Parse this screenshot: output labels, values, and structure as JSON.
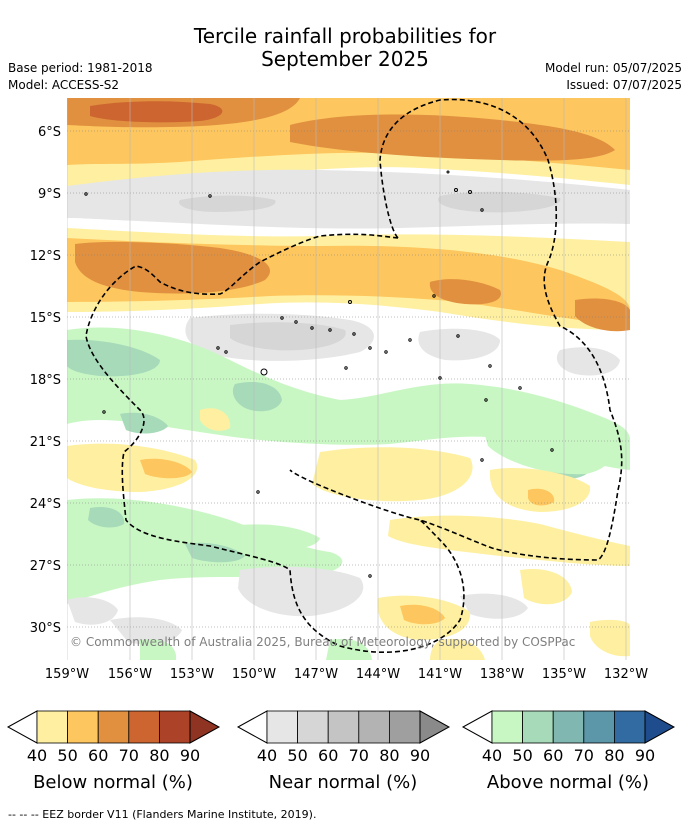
{
  "header": {
    "title_line1": "Tercile rainfall probabilities for",
    "title_line2": "September 2025",
    "base_period": "Base period: 1981-2018",
    "model": "Model: ACCESS-S2",
    "model_run": "Model run: 05/07/2025",
    "issued": "Issued: 07/07/2025"
  },
  "map": {
    "lat_labels": [
      "6°S",
      "9°S",
      "12°S",
      "15°S",
      "18°S",
      "21°S",
      "24°S",
      "27°S",
      "30°S"
    ],
    "lon_labels": [
      "159°W",
      "156°W",
      "153°W",
      "150°W",
      "147°W",
      "144°W",
      "141°W",
      "138°W",
      "135°W",
      "132°W"
    ],
    "copyright": "© Commonwealth of Australia 2025, Bureau of Meteorology, supported by COSPPac"
  },
  "colorbars": [
    {
      "name": "Below normal (%)",
      "ticks": [
        "40",
        "50",
        "60",
        "70",
        "80",
        "90"
      ],
      "colors": [
        "#fef0a0",
        "#fdc65e",
        "#e0903f",
        "#cd6530",
        "#ac4328",
        "#8f3322"
      ]
    },
    {
      "name": "Near normal (%)",
      "ticks": [
        "40",
        "50",
        "60",
        "70",
        "80",
        "90"
      ],
      "colors": [
        "#e6e6e6",
        "#d6d6d6",
        "#c4c4c4",
        "#b3b3b3",
        "#9f9f9f",
        "#8a8a8a"
      ]
    },
    {
      "name": "Above normal (%)",
      "ticks": [
        "40",
        "50",
        "60",
        "70",
        "80",
        "90"
      ],
      "colors": [
        "#c9f7c4",
        "#a6dab9",
        "#80b8b1",
        "#5b97a8",
        "#326ba1",
        "#1f4c8c"
      ]
    }
  ],
  "footer": "--  --  -- EEZ border V11 (Flanders Marine Institute, 2019)."
}
